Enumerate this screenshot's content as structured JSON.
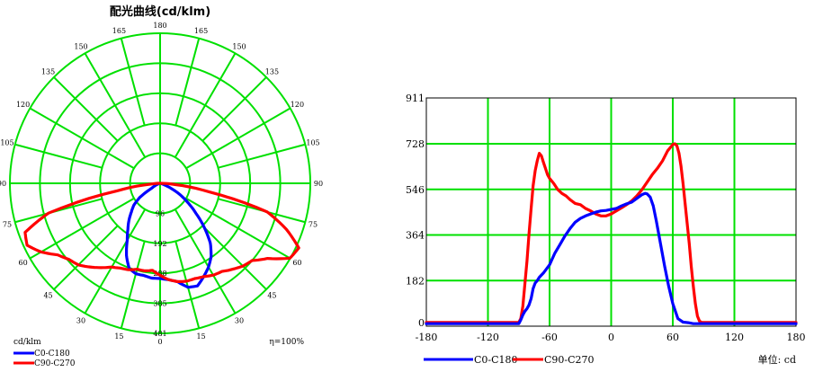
{
  "colors": {
    "grid": "#00e000",
    "c0": "#0000ff",
    "c90": "#ff0000",
    "frame": "#000000"
  },
  "polar": {
    "title": "配光曲线(cd/klm)",
    "unit_label": "cd/klm",
    "efficiency": "η=100%",
    "ring_labels": [
      "96",
      "192",
      "288",
      "385",
      "481"
    ],
    "angle_labels": [
      "180",
      "165",
      "150",
      "135",
      "120",
      "105",
      "90",
      "75",
      "60",
      "45",
      "30",
      "15",
      "0"
    ]
  },
  "cartesian": {
    "unit_label": "单位: cd",
    "y_ticks": [
      "0",
      "182",
      "364",
      "546",
      "728",
      "911"
    ],
    "x_ticks": [
      "-180",
      "-120",
      "-60",
      "0",
      "60",
      "120",
      "180"
    ]
  },
  "legend": [
    {
      "name": "C0-C180",
      "color": "#0000ff"
    },
    {
      "name": "C90-C270",
      "color": "#ff0000"
    }
  ],
  "chart_data": [
    {
      "type": "line",
      "subtype": "polar",
      "title": "配光曲线(cd/klm)",
      "radial_unit": "cd/klm",
      "rlim": [
        0,
        481
      ],
      "series": [
        {
          "name": "C0-C180",
          "angles": [
            -180,
            -90,
            -80,
            -70,
            -60,
            -55,
            -50,
            -45,
            -40,
            -35,
            -30,
            -25,
            -20,
            -15,
            -10,
            -5,
            0,
            5,
            10,
            15,
            20,
            25,
            30,
            35,
            40,
            45,
            50,
            55,
            60,
            65,
            70,
            75,
            80,
            90,
            180
          ],
          "values": [
            0,
            0,
            2,
            4,
            30,
            80,
            110,
            130,
            155,
            180,
            210,
            255,
            290,
            300,
            300,
            305,
            305,
            310,
            320,
            345,
            350,
            330,
            310,
            285,
            250,
            200,
            150,
            110,
            75,
            40,
            15,
            5,
            2,
            0,
            0
          ]
        },
        {
          "name": "C90-C270",
          "angles": [
            -180,
            -90,
            -85,
            -80,
            -75,
            -70,
            -65,
            -60,
            -55,
            -50,
            -45,
            -40,
            -35,
            -30,
            -25,
            -20,
            -15,
            -10,
            -5,
            0,
            5,
            10,
            15,
            20,
            25,
            30,
            35,
            40,
            45,
            50,
            55,
            60,
            65,
            70,
            75,
            80,
            85,
            90,
            180
          ],
          "values": [
            0,
            0,
            30,
            140,
            370,
            460,
            470,
            440,
            400,
            380,
            370,
            350,
            330,
            310,
            300,
            295,
            285,
            285,
            280,
            295,
            310,
            320,
            325,
            325,
            330,
            340,
            345,
            360,
            375,
            385,
            420,
            480,
            490,
            430,
            355,
            160,
            50,
            0,
            0
          ]
        }
      ]
    },
    {
      "type": "line",
      "xlabel": "",
      "ylabel": "",
      "xlim": [
        -180,
        180
      ],
      "ylim": [
        0,
        911
      ],
      "unit": "cd",
      "grid": true,
      "legend_position": "bottom",
      "series": [
        {
          "name": "C0-C180",
          "x": [
            -180,
            -90,
            -88,
            -86,
            -84,
            -82,
            -80,
            -78,
            -76,
            -74,
            -72,
            -70,
            -66,
            -60,
            -55,
            -50,
            -45,
            -40,
            -35,
            -30,
            -25,
            -20,
            -15,
            -10,
            -5,
            0,
            5,
            10,
            15,
            20,
            25,
            30,
            33,
            35,
            38,
            41,
            44,
            48,
            52,
            56,
            60,
            65,
            70,
            75,
            80,
            85,
            90,
            180
          ],
          "y": [
            10,
            10,
            25,
            45,
            60,
            70,
            85,
            110,
            150,
            172,
            182,
            195,
            212,
            245,
            290,
            325,
            360,
            390,
            415,
            430,
            440,
            448,
            455,
            460,
            462,
            466,
            470,
            480,
            488,
            495,
            510,
            525,
            530,
            528,
            515,
            480,
            420,
            330,
            240,
            160,
            90,
            30,
            16,
            14,
            10,
            10,
            10,
            10
          ]
        },
        {
          "name": "C90-C270",
          "x": [
            -180,
            -90,
            -88,
            -86,
            -84,
            -82,
            -80,
            -78,
            -76,
            -74,
            -72,
            -70,
            -68,
            -66,
            -64,
            -62,
            -60,
            -56,
            -52,
            -48,
            -44,
            -40,
            -35,
            -30,
            -25,
            -20,
            -15,
            -10,
            -5,
            0,
            5,
            10,
            15,
            20,
            25,
            30,
            35,
            40,
            45,
            50,
            55,
            60,
            62,
            64,
            66,
            68,
            70,
            72,
            74,
            76,
            78,
            80,
            82,
            84,
            86,
            88,
            90,
            180
          ],
          "y": [
            15,
            15,
            30,
            80,
            170,
            260,
            370,
            470,
            560,
            620,
            660,
            690,
            680,
            655,
            630,
            605,
            590,
            570,
            545,
            530,
            520,
            505,
            490,
            485,
            470,
            460,
            448,
            440,
            440,
            448,
            460,
            472,
            485,
            500,
            520,
            545,
            575,
            605,
            630,
            660,
            700,
            725,
            728,
            720,
            690,
            640,
            570,
            490,
            410,
            330,
            240,
            160,
            90,
            40,
            20,
            15,
            15,
            15
          ]
        }
      ]
    }
  ]
}
